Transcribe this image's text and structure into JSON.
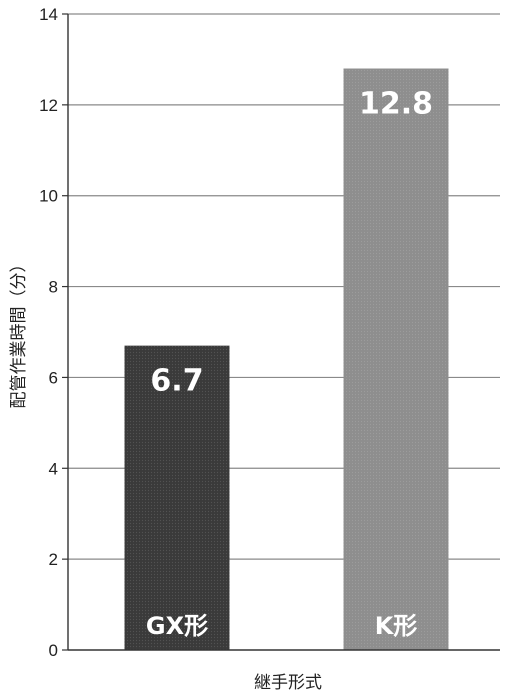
{
  "chart_data": {
    "type": "bar",
    "categories": [
      "GX形",
      "K形"
    ],
    "values": [
      6.7,
      12.8
    ],
    "value_labels": [
      "6.7",
      "12.8"
    ],
    "title": "",
    "xlabel": "継手形式",
    "ylabel": "配管作業時間（分）",
    "ylim": [
      0,
      14
    ],
    "yticks": [
      0,
      2,
      4,
      6,
      8,
      10,
      12,
      14
    ],
    "grid": true,
    "legend": "none",
    "colors": {
      "bars": [
        "#3a3a3a",
        "#8e8e8e"
      ],
      "grid": "#8a8a8a",
      "axis": "#333333",
      "bar_text": "#ffffff"
    }
  }
}
